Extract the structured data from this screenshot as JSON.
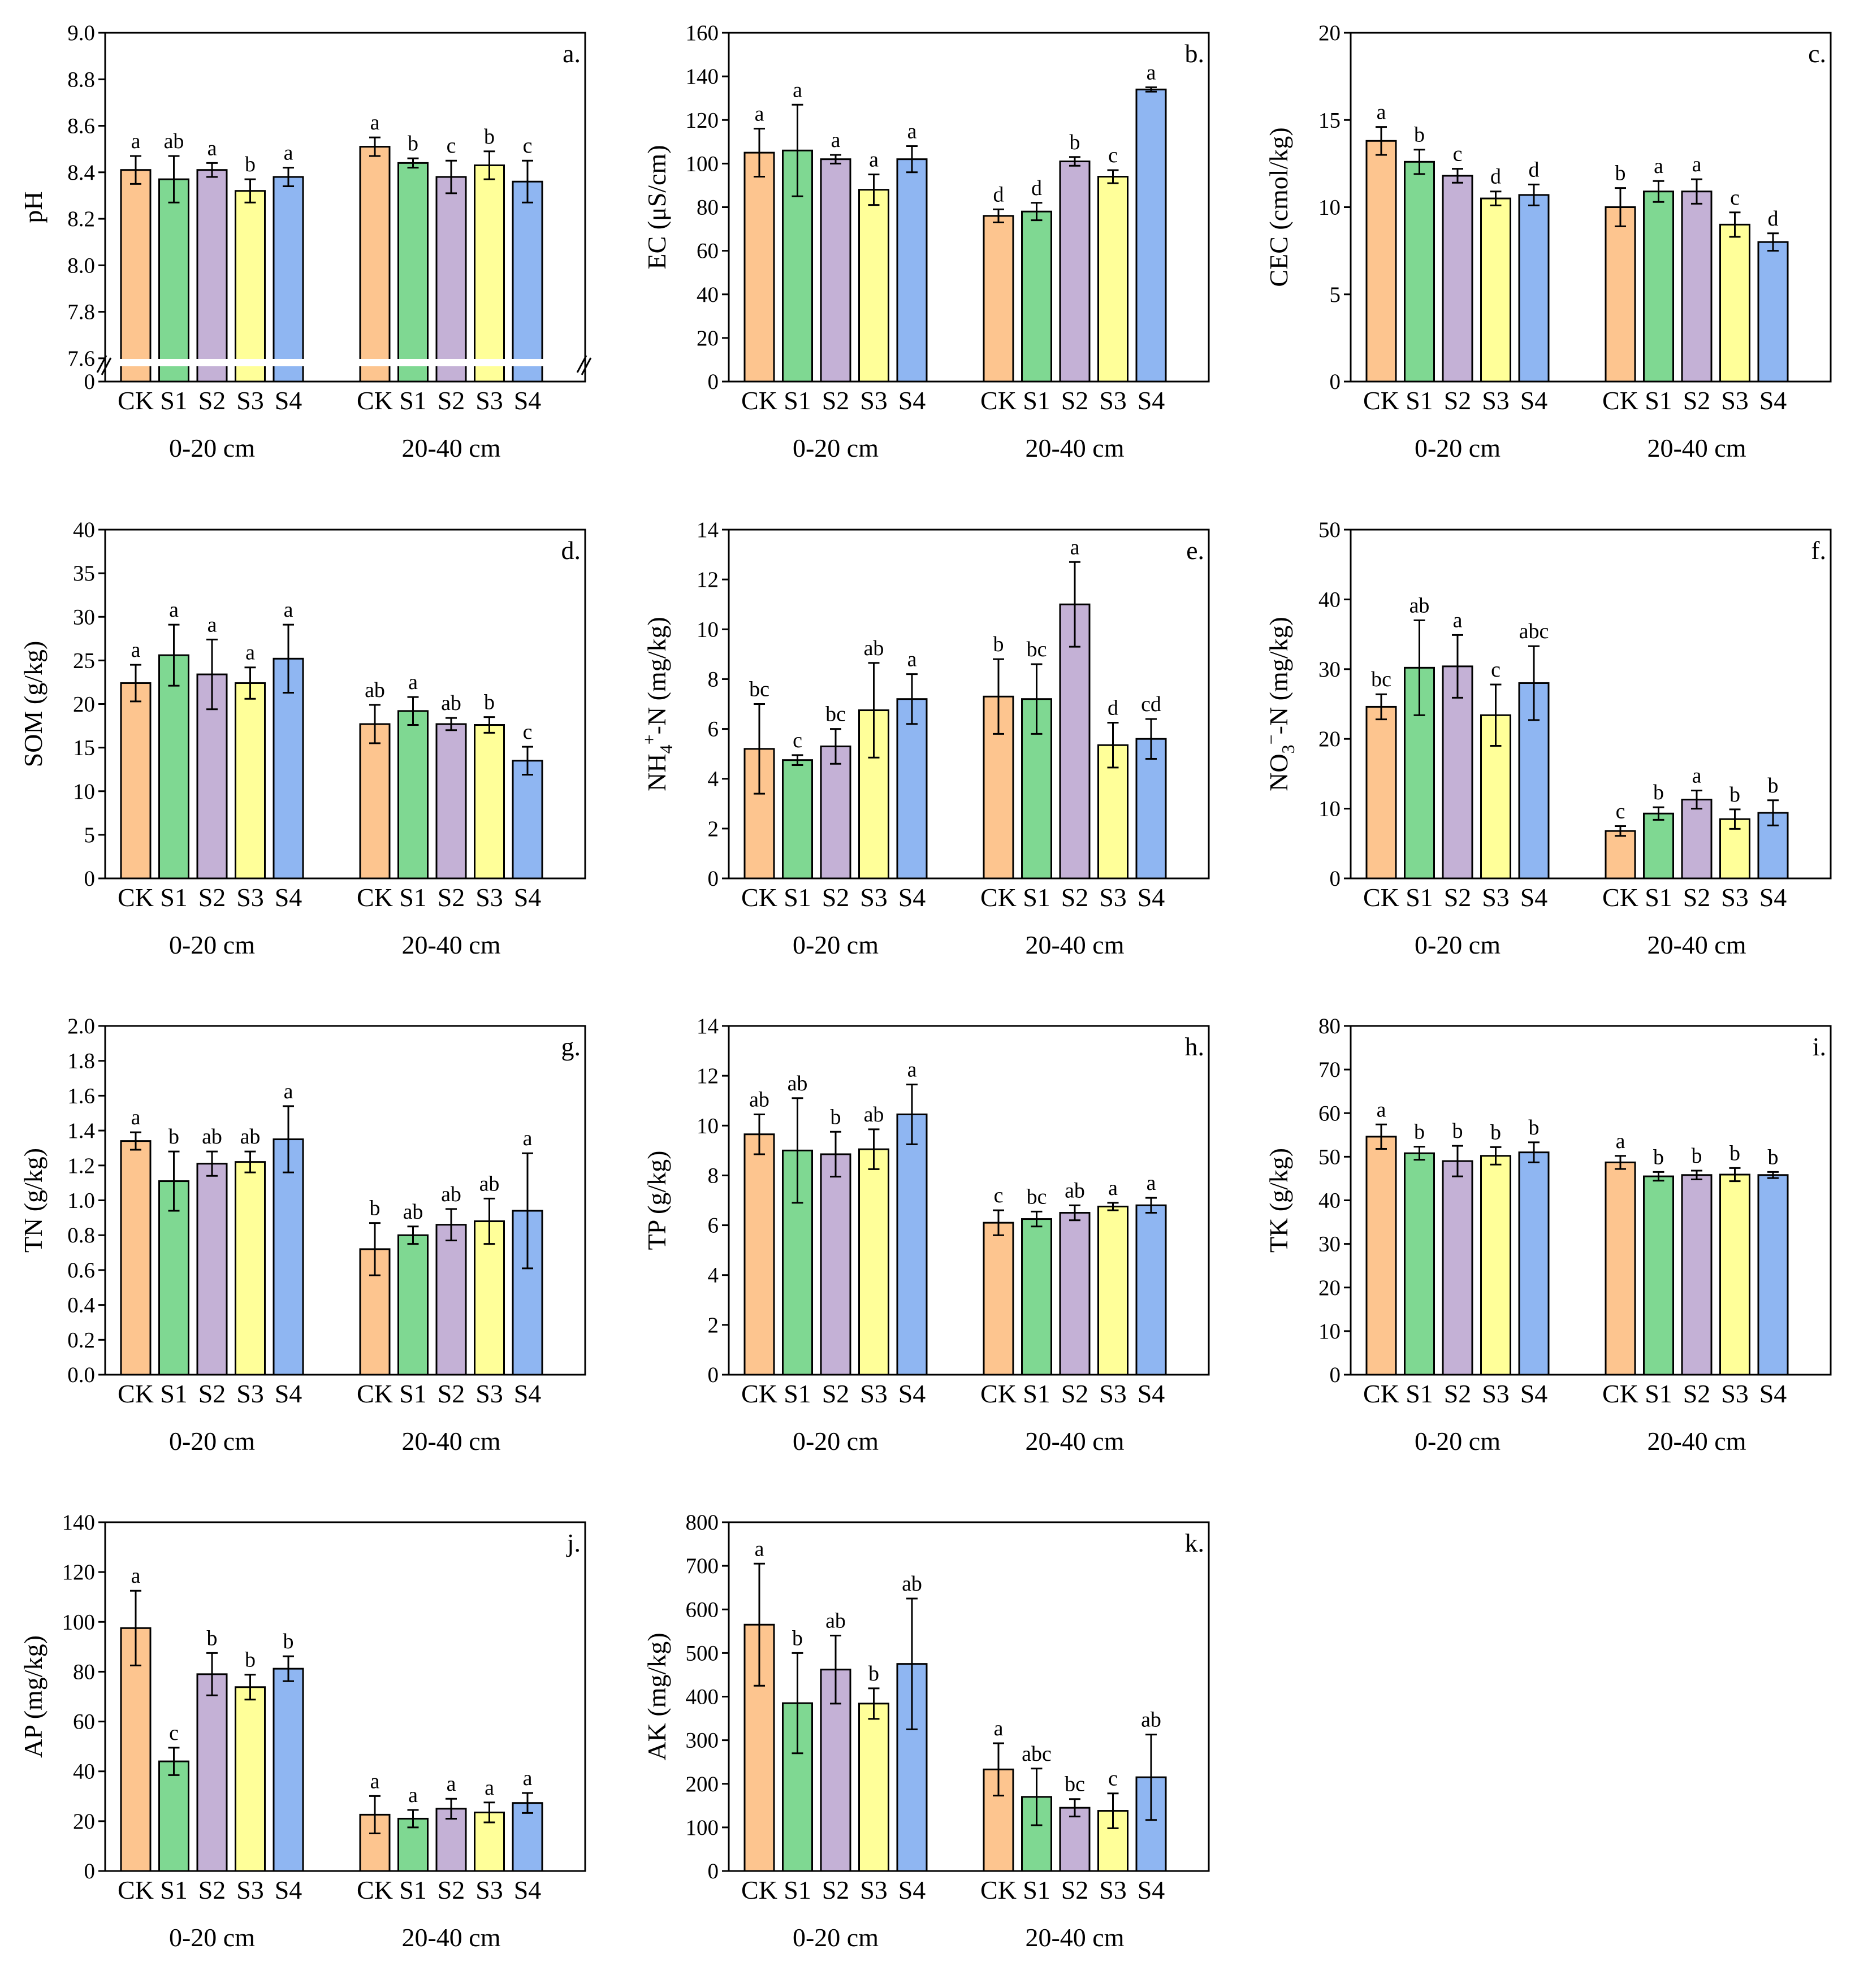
{
  "common": {
    "categories": [
      "CK",
      "S1",
      "S2",
      "S3",
      "S4"
    ],
    "groups": [
      "0-20 cm",
      "20-40 cm"
    ],
    "colors": [
      "#FDC58F",
      "#7FD892",
      "#C4B1D6",
      "#FFFF99",
      "#8FB6F2"
    ]
  },
  "chart_data": [
    {
      "id": "a",
      "type": "bar",
      "panel_label": "a.",
      "ylabel": "pH",
      "ylim": [
        7.5,
        9.0
      ],
      "yticks": [
        "7.6",
        "7.8",
        "8.0",
        "8.2",
        "8.4",
        "8.6",
        "8.8",
        "9.0"
      ],
      "ytick_values": [
        7.6,
        7.8,
        8.0,
        8.2,
        8.4,
        8.6,
        8.8,
        9.0
      ],
      "broken_axis": true,
      "zero_label": "0",
      "series": [
        {
          "group": "0-20 cm",
          "values": [
            8.41,
            8.37,
            8.41,
            8.32,
            8.38
          ],
          "errors": [
            0.06,
            0.1,
            0.03,
            0.05,
            0.04
          ],
          "letters": [
            "a",
            "ab",
            "a",
            "b",
            "a"
          ]
        },
        {
          "group": "20-40 cm",
          "values": [
            8.51,
            8.44,
            8.38,
            8.43,
            8.36
          ],
          "errors": [
            0.04,
            0.02,
            0.07,
            0.06,
            0.09
          ],
          "letters": [
            "a",
            "b",
            "c",
            "b",
            "c"
          ]
        }
      ]
    },
    {
      "id": "b",
      "type": "bar",
      "panel_label": "b.",
      "ylabel": "EC (μS/cm)",
      "ylim": [
        0,
        160
      ],
      "yticks": [
        "0",
        "20",
        "40",
        "60",
        "80",
        "100",
        "120",
        "140",
        "160"
      ],
      "ytick_values": [
        0,
        20,
        40,
        60,
        80,
        100,
        120,
        140,
        160
      ],
      "series": [
        {
          "group": "0-20 cm",
          "values": [
            105,
            106,
            102,
            88,
            102
          ],
          "errors": [
            11,
            21,
            2,
            7,
            6
          ],
          "letters": [
            "a",
            "a",
            "a",
            "a",
            "a"
          ]
        },
        {
          "group": "20-40 cm",
          "values": [
            76,
            78,
            101,
            94,
            134
          ],
          "errors": [
            3,
            4,
            2,
            3,
            1
          ],
          "letters": [
            "d",
            "d",
            "b",
            "c",
            "a"
          ]
        }
      ]
    },
    {
      "id": "c",
      "type": "bar",
      "panel_label": "c.",
      "ylabel": "CEC (cmol/kg)",
      "ylim": [
        0,
        20
      ],
      "yticks": [
        "0",
        "5",
        "10",
        "15",
        "20"
      ],
      "ytick_values": [
        0,
        5,
        10,
        15,
        20
      ],
      "series": [
        {
          "group": "0-20 cm",
          "values": [
            13.8,
            12.6,
            11.8,
            10.5,
            10.7
          ],
          "errors": [
            0.8,
            0.7,
            0.4,
            0.4,
            0.6
          ],
          "letters": [
            "a",
            "b",
            "c",
            "d",
            "d"
          ]
        },
        {
          "group": "20-40 cm",
          "values": [
            10.0,
            10.9,
            10.9,
            9.0,
            8.0
          ],
          "errors": [
            1.1,
            0.6,
            0.7,
            0.7,
            0.5
          ],
          "letters": [
            "b",
            "a",
            "a",
            "c",
            "d"
          ]
        }
      ]
    },
    {
      "id": "d",
      "type": "bar",
      "panel_label": "d.",
      "ylabel": "SOM (g/kg)",
      "ylim": [
        0,
        40
      ],
      "yticks": [
        "0",
        "5",
        "10",
        "15",
        "20",
        "25",
        "30",
        "35",
        "40"
      ],
      "ytick_values": [
        0,
        5,
        10,
        15,
        20,
        25,
        30,
        35,
        40
      ],
      "series": [
        {
          "group": "0-20 cm",
          "values": [
            22.4,
            25.6,
            23.4,
            22.4,
            25.2
          ],
          "errors": [
            2.1,
            3.5,
            4.0,
            1.8,
            3.9
          ],
          "letters": [
            "a",
            "a",
            "a",
            "a",
            "a"
          ]
        },
        {
          "group": "20-40 cm",
          "values": [
            17.7,
            19.2,
            17.7,
            17.6,
            13.5
          ],
          "errors": [
            2.2,
            1.6,
            0.7,
            0.9,
            1.6
          ],
          "letters": [
            "ab",
            "a",
            "ab",
            "b",
            "c"
          ]
        }
      ]
    },
    {
      "id": "e",
      "type": "bar",
      "panel_label": "e.",
      "ylabel": "NH4+-N (mg/kg)",
      "ylabel_parts": [
        "NH",
        "4",
        "+",
        "-N (mg/kg)"
      ],
      "ylim": [
        0,
        14
      ],
      "yticks": [
        "0",
        "2",
        "4",
        "6",
        "8",
        "10",
        "12",
        "14"
      ],
      "ytick_values": [
        0,
        2,
        4,
        6,
        8,
        10,
        12,
        14
      ],
      "series": [
        {
          "group": "0-20 cm",
          "values": [
            5.2,
            4.75,
            5.3,
            6.75,
            7.2
          ],
          "errors": [
            1.8,
            0.2,
            0.7,
            1.9,
            1.0
          ],
          "letters": [
            "bc",
            "c",
            "bc",
            "ab",
            "a"
          ]
        },
        {
          "group": "20-40 cm",
          "values": [
            7.3,
            7.2,
            11.0,
            5.35,
            5.6
          ],
          "errors": [
            1.5,
            1.4,
            1.7,
            0.9,
            0.8
          ],
          "letters": [
            "b",
            "bc",
            "a",
            "d",
            "cd"
          ]
        }
      ]
    },
    {
      "id": "f",
      "type": "bar",
      "panel_label": "f.",
      "ylabel": "NO3−-N (mg/kg)",
      "ylabel_parts": [
        "NO",
        "3",
        "−",
        "-N (mg/kg)"
      ],
      "ylim": [
        0,
        50
      ],
      "yticks": [
        "0",
        "10",
        "20",
        "30",
        "40",
        "50"
      ],
      "ytick_values": [
        0,
        10,
        20,
        30,
        40,
        50
      ],
      "series": [
        {
          "group": "0-20 cm",
          "values": [
            24.6,
            30.2,
            30.4,
            23.4,
            28.0
          ],
          "errors": [
            1.8,
            6.8,
            4.5,
            4.4,
            5.3
          ],
          "letters": [
            "bc",
            "ab",
            "a",
            "c",
            "abc"
          ]
        },
        {
          "group": "20-40 cm",
          "values": [
            6.8,
            9.3,
            11.3,
            8.5,
            9.4
          ],
          "errors": [
            0.7,
            0.9,
            1.3,
            1.4,
            1.8
          ],
          "letters": [
            "c",
            "b",
            "a",
            "b",
            "b"
          ]
        }
      ]
    },
    {
      "id": "g",
      "type": "bar",
      "panel_label": "g.",
      "ylabel": "TN (g/kg)",
      "ylim": [
        0,
        2.0
      ],
      "yticks": [
        "0.0",
        "0.2",
        "0.4",
        "0.6",
        "0.8",
        "1.0",
        "1.2",
        "1.4",
        "1.6",
        "1.8",
        "2.0"
      ],
      "ytick_values": [
        0,
        0.2,
        0.4,
        0.6,
        0.8,
        1.0,
        1.2,
        1.4,
        1.6,
        1.8,
        2.0
      ],
      "series": [
        {
          "group": "0-20 cm",
          "values": [
            1.34,
            1.11,
            1.21,
            1.22,
            1.35
          ],
          "errors": [
            0.05,
            0.17,
            0.07,
            0.06,
            0.19
          ],
          "letters": [
            "a",
            "b",
            "ab",
            "ab",
            "a"
          ]
        },
        {
          "group": "20-40 cm",
          "values": [
            0.72,
            0.8,
            0.86,
            0.88,
            0.94
          ],
          "errors": [
            0.15,
            0.05,
            0.09,
            0.13,
            0.33
          ],
          "letters": [
            "b",
            "ab",
            "ab",
            "ab",
            "a"
          ]
        }
      ]
    },
    {
      "id": "h",
      "type": "bar",
      "panel_label": "h.",
      "ylabel": "TP (g/kg)",
      "ylim": [
        0,
        14
      ],
      "yticks": [
        "0",
        "2",
        "4",
        "6",
        "8",
        "10",
        "12",
        "14"
      ],
      "ytick_values": [
        0,
        2,
        4,
        6,
        8,
        10,
        12,
        14
      ],
      "series": [
        {
          "group": "0-20 cm",
          "values": [
            9.65,
            9.0,
            8.85,
            9.05,
            10.45
          ],
          "errors": [
            0.8,
            2.1,
            0.9,
            0.8,
            1.2
          ],
          "letters": [
            "ab",
            "ab",
            "b",
            "ab",
            "a"
          ]
        },
        {
          "group": "20-40 cm",
          "values": [
            6.1,
            6.25,
            6.5,
            6.75,
            6.8
          ],
          "errors": [
            0.5,
            0.3,
            0.3,
            0.15,
            0.3
          ],
          "letters": [
            "c",
            "bc",
            "ab",
            "a",
            "a"
          ]
        }
      ]
    },
    {
      "id": "i",
      "type": "bar",
      "panel_label": "i.",
      "ylabel": "TK (g/kg)",
      "ylim": [
        0,
        80
      ],
      "yticks": [
        "0",
        "10",
        "20",
        "30",
        "40",
        "50",
        "60",
        "70",
        "80"
      ],
      "ytick_values": [
        0,
        10,
        20,
        30,
        40,
        50,
        60,
        70,
        80
      ],
      "series": [
        {
          "group": "0-20 cm",
          "values": [
            54.6,
            50.8,
            49.0,
            50.2,
            51.0
          ],
          "errors": [
            2.8,
            1.5,
            3.5,
            2.0,
            2.3
          ],
          "letters": [
            "a",
            "b",
            "b",
            "b",
            "b"
          ]
        },
        {
          "group": "20-40 cm",
          "values": [
            48.7,
            45.5,
            45.8,
            45.9,
            45.8
          ],
          "errors": [
            1.5,
            1.0,
            1.0,
            1.5,
            0.7
          ],
          "letters": [
            "a",
            "b",
            "b",
            "b",
            "b"
          ]
        }
      ]
    },
    {
      "id": "j",
      "type": "bar",
      "panel_label": "j.",
      "ylabel": "AP (mg/kg)",
      "ylim": [
        0,
        140
      ],
      "yticks": [
        "0",
        "20",
        "40",
        "60",
        "80",
        "100",
        "120",
        "140"
      ],
      "ytick_values": [
        0,
        20,
        40,
        60,
        80,
        100,
        120,
        140
      ],
      "series": [
        {
          "group": "0-20 cm",
          "values": [
            97.5,
            44.0,
            79.0,
            73.8,
            81.2
          ],
          "errors": [
            15,
            5.5,
            8.5,
            5.0,
            5.0
          ],
          "letters": [
            "a",
            "c",
            "b",
            "b",
            "b"
          ]
        },
        {
          "group": "20-40 cm",
          "values": [
            22.6,
            21.0,
            25.0,
            23.5,
            27.3
          ],
          "errors": [
            7.5,
            3.5,
            4.0,
            4.0,
            4.0
          ],
          "letters": [
            "a",
            "a",
            "a",
            "a",
            "a"
          ]
        }
      ]
    },
    {
      "id": "k",
      "type": "bar",
      "panel_label": "k.",
      "ylabel": "AK (mg/kg)",
      "ylim": [
        0,
        800
      ],
      "yticks": [
        "0",
        "100",
        "200",
        "300",
        "400",
        "500",
        "600",
        "700",
        "800"
      ],
      "ytick_values": [
        0,
        100,
        200,
        300,
        400,
        500,
        600,
        700,
        800
      ],
      "series": [
        {
          "group": "0-20 cm",
          "values": [
            565,
            385,
            462,
            384,
            475
          ],
          "errors": [
            140,
            115,
            78,
            35,
            150
          ],
          "letters": [
            "a",
            "b",
            "ab",
            "b",
            "ab"
          ]
        },
        {
          "group": "20-40 cm",
          "values": [
            233,
            170,
            145,
            138,
            215
          ],
          "errors": [
            60,
            65,
            20,
            40,
            98
          ],
          "letters": [
            "a",
            "abc",
            "bc",
            "c",
            "ab"
          ]
        }
      ]
    }
  ]
}
